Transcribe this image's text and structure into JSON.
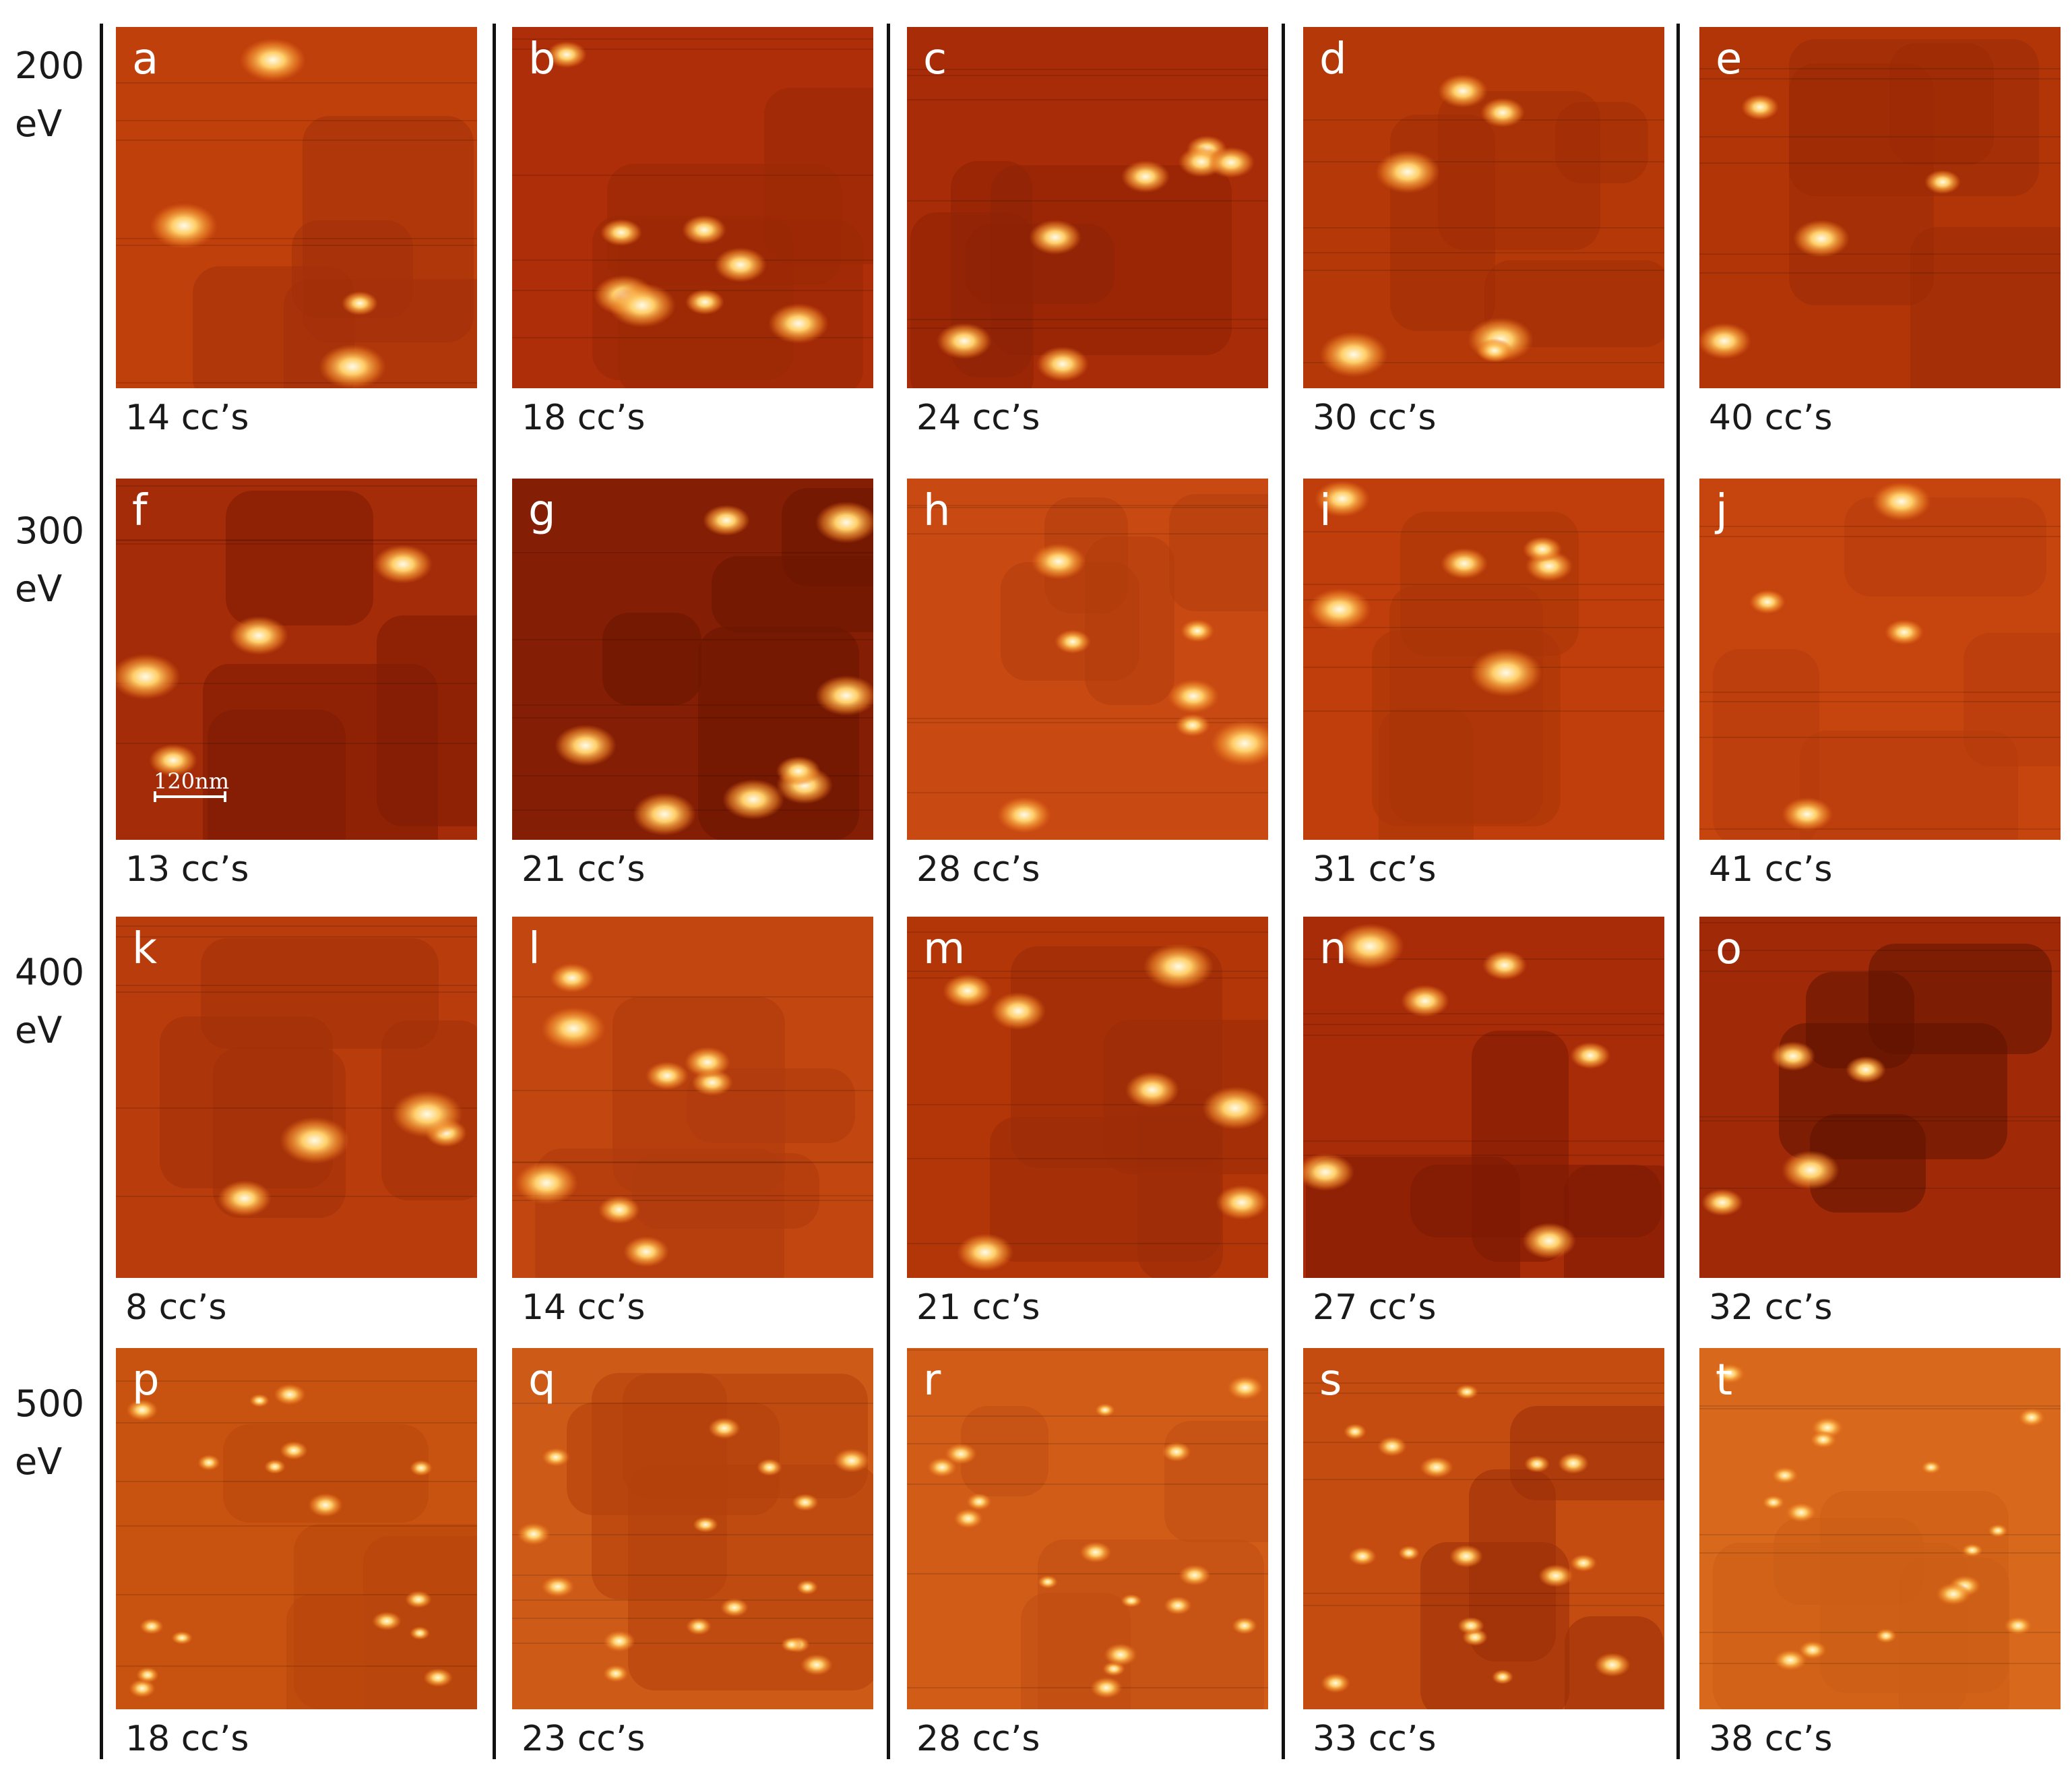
{
  "rows": [
    {
      "energy_value": "200",
      "energy_unit": "eV",
      "panels": [
        {
          "letter": "a",
          "caption": "14 cc’s",
          "base": "#c0400c",
          "dark": "#a2300a"
        },
        {
          "letter": "b",
          "caption": "18 cc’s",
          "base": "#ad2e08",
          "dark": "#9a2806"
        },
        {
          "letter": "c",
          "caption": "24 cc’s",
          "base": "#a82c08",
          "dark": "#8e2206"
        },
        {
          "letter": "d",
          "caption": "30 cc’s",
          "base": "#b43808",
          "dark": "#a02e07"
        },
        {
          "letter": "e",
          "caption": "40 cc’s",
          "base": "#b23508",
          "dark": "#9a2a06"
        }
      ]
    },
    {
      "energy_value": "300",
      "energy_unit": "eV",
      "panels": [
        {
          "letter": "f",
          "caption": "13 cc’s",
          "base": "#a42c08",
          "dark": "#7e1c04",
          "scalebar": "120nm"
        },
        {
          "letter": "g",
          "caption": "21 cc’s",
          "base": "#841e04",
          "dark": "#6c1602"
        },
        {
          "letter": "h",
          "caption": "28 cc’s",
          "base": "#c84a12",
          "dark": "#b23c0c"
        },
        {
          "letter": "i",
          "caption": "31 cc’s",
          "base": "#c03e0c",
          "dark": "#aa3408"
        },
        {
          "letter": "j",
          "caption": "41 cc’s",
          "base": "#c6440e",
          "dark": "#b63c0c"
        }
      ]
    },
    {
      "energy_value": "400",
      "energy_unit": "eV",
      "panels": [
        {
          "letter": "k",
          "caption": "8 cc’s",
          "base": "#b83c0c",
          "dark": "#a2300a"
        },
        {
          "letter": "l",
          "caption": "14 cc’s",
          "base": "#c24610",
          "dark": "#ae3a0c"
        },
        {
          "letter": "m",
          "caption": "21 cc’s",
          "base": "#b23608",
          "dark": "#9a2c08"
        },
        {
          "letter": "n",
          "caption": "27 cc’s",
          "base": "#a82c08",
          "dark": "#7c1a04"
        },
        {
          "letter": "o",
          "caption": "32 cc’s",
          "base": "#a02a08",
          "dark": "#5e1202"
        }
      ]
    },
    {
      "energy_value": "500",
      "energy_unit": "eV",
      "panels": [
        {
          "letter": "p",
          "caption": "18 cc’s",
          "base": "#c8520f",
          "dark": "#b8460c"
        },
        {
          "letter": "q",
          "caption": "23 cc’s",
          "base": "#ce5a18",
          "dark": "#b2400c"
        },
        {
          "letter": "r",
          "caption": "28 cc’s",
          "base": "#d05c18",
          "dark": "#c04c12"
        },
        {
          "letter": "s",
          "caption": "33 cc’s",
          "base": "#c44c10",
          "dark": "#9a2e08"
        },
        {
          "letter": "t",
          "caption": "38 cc’s",
          "base": "#d8681c",
          "dark": "#cc5c16"
        }
      ]
    }
  ]
}
